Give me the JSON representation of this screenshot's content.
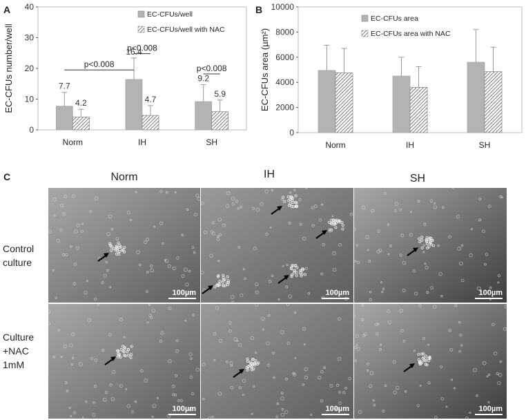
{
  "panels": {
    "a": "A",
    "b": "B",
    "c": "C"
  },
  "chart_data": [
    {
      "type": "bar",
      "panel": "A",
      "categories": [
        "Norm",
        "IH",
        "SH"
      ],
      "ylabel": "EC-CFUs number/well",
      "ylim": [
        0,
        40
      ],
      "yticks": [
        0,
        10,
        20,
        30,
        40
      ],
      "series": [
        {
          "name": "EC-CFUs/well",
          "values": [
            7.7,
            16.4,
            9.2
          ],
          "errors": [
            4.5,
            7.0,
            5.5
          ],
          "labels": [
            "7.7",
            "16.4",
            "9.2"
          ],
          "fill": "#b3b3b3"
        },
        {
          "name": "EC-CFUs/well with NAC",
          "values": [
            4.2,
            4.7,
            5.9
          ],
          "errors": [
            2.5,
            3.2,
            3.8
          ],
          "labels": [
            "4.2",
            "4.7",
            "5.9"
          ],
          "fill": "hatch"
        }
      ],
      "annotations": [
        "p<0.008",
        "p<0.008",
        "p<0.008"
      ]
    },
    {
      "type": "bar",
      "panel": "B",
      "categories": [
        "Norm",
        "IH",
        "SH"
      ],
      "ylabel": "EC-CFUs area (µm²)",
      "ylim": [
        0,
        10000
      ],
      "yticks": [
        0,
        2000,
        4000,
        6000,
        8000,
        10000
      ],
      "series": [
        {
          "name": "EC-CFUs area",
          "values": [
            4950,
            4500,
            5600
          ],
          "errors": [
            2000,
            1500,
            2600
          ],
          "fill": "#b3b3b3"
        },
        {
          "name": "EC-CFUs area with NAC",
          "values": [
            4750,
            3600,
            4850
          ],
          "errors": [
            1950,
            1650,
            1950
          ],
          "fill": "hatch"
        }
      ]
    }
  ],
  "micrographs": {
    "columns": [
      "Norm",
      "IH",
      "SH"
    ],
    "rows": [
      "Control culture",
      "Culture +NAC 1mM"
    ],
    "row_lines": [
      [
        "Control",
        "culture"
      ],
      [
        "Culture",
        "+NAC",
        "1mM"
      ]
    ],
    "scale_label": "100µm",
    "background": "#8e8e8e",
    "dark": "#4c4c4c"
  }
}
